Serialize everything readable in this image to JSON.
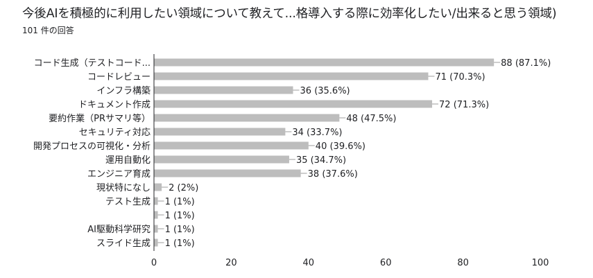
{
  "header": {
    "title": "今後AIを積極的に利用したい領域について教えて...格導入する際に効率化したい/出来ると思う領域)",
    "responses": "101 件の回答"
  },
  "chart_data": {
    "type": "bar",
    "orientation": "horizontal",
    "categories": [
      "コード生成（テストコード...",
      "コードレビュー",
      "インフラ構築",
      "ドキュメント作成",
      "要約作業（PRサマリ等）",
      "セキュリティ対応",
      "開発プロセスの可視化・分析",
      "運用自動化",
      "エンジニア育成",
      "現状特になし",
      "テスト生成",
      "",
      "AI駆動科学研究",
      "スライド生成"
    ],
    "values": [
      88,
      71,
      36,
      72,
      48,
      34,
      40,
      35,
      38,
      2,
      1,
      1,
      1,
      1
    ],
    "data_labels": [
      "88 (87.1%)",
      "71 (70.3%)",
      "36 (35.6%)",
      "72 (71.3%)",
      "48 (47.5%)",
      "34 (33.7%)",
      "40 (39.6%)",
      "35 (34.7%)",
      "38 (37.6%)",
      "2 (2%)",
      "1 (1%)",
      "1 (1%)",
      "1 (1%)",
      "1 (1%)"
    ],
    "xlim": [
      0,
      100
    ],
    "xticks": [
      0,
      20,
      40,
      60,
      80,
      100
    ],
    "xticklabels": [
      "0",
      "20",
      "40",
      "60",
      "80",
      "100"
    ],
    "grid": false,
    "bar_color": "#bdbdbd",
    "axis_color": "#202124"
  }
}
